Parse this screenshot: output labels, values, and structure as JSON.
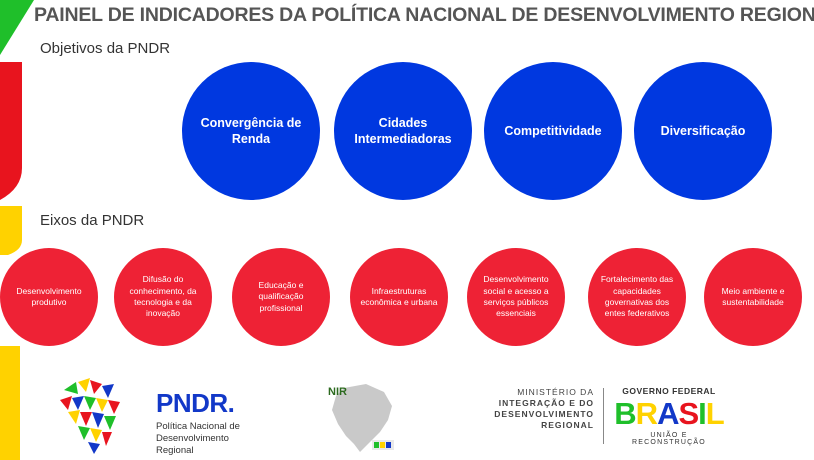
{
  "title": "PAINEL DE INDICADORES DA POLÍTICA NACIONAL DE DESENVOLVIMENTO REGIONAL",
  "objectives": {
    "label": "Objetivos da PNDR",
    "items": [
      "Convergência de Renda",
      "Cidades Intermediadoras",
      "Competitividade",
      "Diversificação"
    ]
  },
  "axes": {
    "label": "Eixos da PNDR",
    "items": [
      "Desenvolvimento produtivo",
      "Difusão do conhecimento, da tecnologia e da inovação",
      "Educação e qualificação profissional",
      "Infraestruturas econômica e urbana",
      "Desenvolvimento social e acesso a serviços públicos essenciais",
      "Fortalecimento das capacidades governativas dos entes federativos",
      "Meio ambiente e sustentabilidade"
    ]
  },
  "footer": {
    "pndr_brand": "PNDR.",
    "pndr_name": "Política Nacional de Desenvolvimento Regional",
    "nir_brand": "NIR",
    "ministry_line1": "MINISTÉRIO DA",
    "ministry_line2": "INTEGRAÇÃO E DO",
    "ministry_line3": "DESENVOLVIMENTO",
    "ministry_line4": "REGIONAL",
    "gov_top": "GOVERNO FEDERAL",
    "gov_brasil": "BRASIL",
    "gov_bottom": "UNIÃO E RECONSTRUÇÃO"
  },
  "colors": {
    "objective_circle": "#0038e0",
    "axis_circle": "#ee2235",
    "accent_green": "#1fbf2a",
    "accent_red": "#e8141e",
    "accent_yellow": "#ffd200"
  }
}
